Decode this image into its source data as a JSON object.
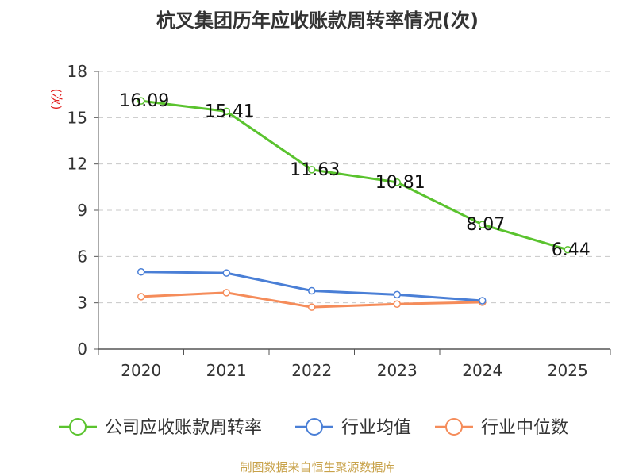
{
  "title": "杭叉集团历年应收账款周转率情况(次)",
  "footer": "制图数据来自恒生聚源数据库",
  "chart_data": {
    "type": "line",
    "title": "杭叉集团历年应收账款周转率情况(次)",
    "xlabel": "",
    "ylabel": "(次)",
    "ylim": [
      0,
      18
    ],
    "yticks": [
      0,
      3,
      6,
      9,
      12,
      15,
      18
    ],
    "categories": [
      "2020",
      "2021",
      "2022",
      "2023",
      "2024",
      "2025"
    ],
    "grid": true,
    "legend_position": "bottom",
    "series": [
      {
        "name": "公司应收账款周转率",
        "color": "#5ac32e",
        "show_labels": true,
        "values": [
          16.09,
          15.41,
          11.63,
          10.81,
          8.07,
          6.44
        ]
      },
      {
        "name": "行业均值",
        "color": "#4a7fd6",
        "show_labels": false,
        "values": [
          5.0,
          4.93,
          3.78,
          3.53,
          3.14,
          null
        ]
      },
      {
        "name": "行业中位数",
        "color": "#f58c5a",
        "show_labels": false,
        "values": [
          3.4,
          3.66,
          2.72,
          2.92,
          3.04,
          null
        ]
      }
    ]
  }
}
